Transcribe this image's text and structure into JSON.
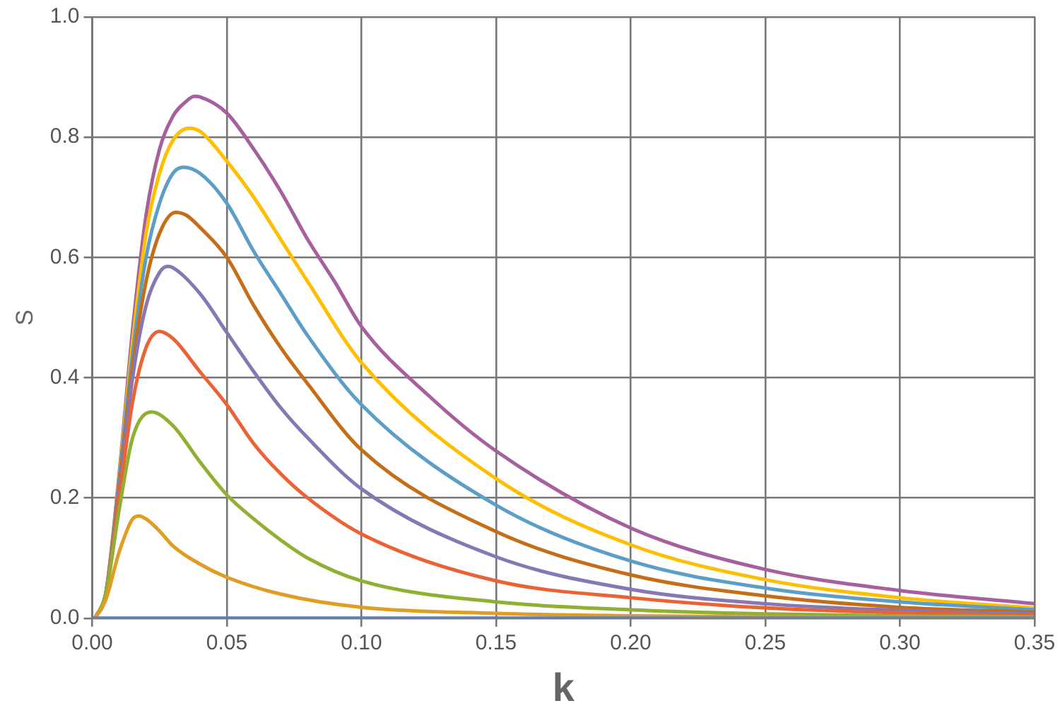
{
  "chart_data": {
    "type": "line",
    "xlabel": "k",
    "ylabel": "S",
    "xlim": [
      0,
      0.35
    ],
    "ylim": [
      0,
      1
    ],
    "xticks": [
      {
        "value": 0,
        "label": "0.00"
      },
      {
        "value": 0.05,
        "label": "0.05"
      },
      {
        "value": 0.1,
        "label": "0.10"
      },
      {
        "value": 0.15,
        "label": "0.15"
      },
      {
        "value": 0.2,
        "label": "0.20"
      },
      {
        "value": 0.25,
        "label": "0.25"
      },
      {
        "value": 0.3,
        "label": "0.30"
      },
      {
        "value": 0.35,
        "label": "0.35"
      }
    ],
    "yticks": [
      {
        "value": 0,
        "label": "0.0"
      },
      {
        "value": 0.2,
        "label": "0.2"
      },
      {
        "value": 0.4,
        "label": "0.4"
      },
      {
        "value": 0.6,
        "label": "0.6"
      },
      {
        "value": 0.8,
        "label": "0.8"
      },
      {
        "value": 1,
        "label": "1.0"
      }
    ],
    "grid": true,
    "line_style": "solid",
    "marker": "none",
    "series": [
      {
        "color": "#5e81b5",
        "x": [
          0,
          0.35
        ],
        "values": [
          0,
          0
        ]
      },
      {
        "color": "#e19c24",
        "x": [
          0.001,
          0.005,
          0.01,
          0.015,
          0.0175,
          0.02,
          0.025,
          0.03,
          0.04,
          0.05,
          0.07,
          0.1,
          0.15,
          0.2,
          0.25,
          0.3,
          0.35
        ],
        "values": [
          0,
          0.03,
          0.11,
          0.165,
          0.17,
          0.165,
          0.145,
          0.12,
          0.09,
          0.068,
          0.04,
          0.018,
          0.008,
          0.004,
          0.002,
          0.001,
          0.001
        ]
      },
      {
        "color": "#8fb032",
        "x": [
          0.001,
          0.005,
          0.01,
          0.015,
          0.022,
          0.03,
          0.04,
          0.05,
          0.06,
          0.07,
          0.08,
          0.1,
          0.15,
          0.2,
          0.25,
          0.3,
          0.35
        ],
        "values": [
          0,
          0.04,
          0.18,
          0.3,
          0.343,
          0.32,
          0.26,
          0.205,
          0.165,
          0.13,
          0.1,
          0.062,
          0.027,
          0.014,
          0.007,
          0.004,
          0.002
        ]
      },
      {
        "color": "#eb6235",
        "x": [
          0.001,
          0.005,
          0.01,
          0.015,
          0.02,
          0.025,
          0.03,
          0.04,
          0.05,
          0.06,
          0.07,
          0.08,
          0.1,
          0.15,
          0.2,
          0.25,
          0.3,
          0.35
        ],
        "values": [
          0,
          0.04,
          0.2,
          0.36,
          0.45,
          0.477,
          0.465,
          0.41,
          0.355,
          0.29,
          0.24,
          0.2,
          0.14,
          0.062,
          0.034,
          0.017,
          0.009,
          0.005
        ]
      },
      {
        "color": "#8778b3",
        "x": [
          0.001,
          0.005,
          0.01,
          0.015,
          0.02,
          0.025,
          0.028,
          0.03,
          0.04,
          0.05,
          0.06,
          0.07,
          0.08,
          0.1,
          0.15,
          0.2,
          0.25,
          0.3,
          0.35
        ],
        "values": [
          0,
          0.04,
          0.21,
          0.4,
          0.52,
          0.575,
          0.585,
          0.583,
          0.54,
          0.475,
          0.41,
          0.35,
          0.3,
          0.215,
          0.102,
          0.048,
          0.024,
          0.013,
          0.007
        ]
      },
      {
        "color": "#c56e1a",
        "x": [
          0.001,
          0.005,
          0.01,
          0.015,
          0.02,
          0.025,
          0.031,
          0.035,
          0.04,
          0.05,
          0.06,
          0.07,
          0.08,
          0.1,
          0.15,
          0.2,
          0.25,
          0.3,
          0.35
        ],
        "values": [
          0,
          0.04,
          0.22,
          0.42,
          0.56,
          0.64,
          0.675,
          0.67,
          0.65,
          0.6,
          0.52,
          0.45,
          0.39,
          0.28,
          0.144,
          0.072,
          0.037,
          0.018,
          0.01
        ]
      },
      {
        "color": "#5d9ec7",
        "x": [
          0.001,
          0.005,
          0.01,
          0.015,
          0.02,
          0.025,
          0.03,
          0.034,
          0.04,
          0.05,
          0.06,
          0.07,
          0.08,
          0.1,
          0.15,
          0.2,
          0.25,
          0.3,
          0.35
        ],
        "values": [
          0,
          0.04,
          0.23,
          0.44,
          0.6,
          0.69,
          0.74,
          0.75,
          0.74,
          0.69,
          0.61,
          0.54,
          0.47,
          0.355,
          0.188,
          0.095,
          0.05,
          0.027,
          0.014
        ]
      },
      {
        "color": "#ffbf00",
        "x": [
          0.001,
          0.005,
          0.01,
          0.015,
          0.02,
          0.025,
          0.03,
          0.036,
          0.04,
          0.05,
          0.06,
          0.07,
          0.08,
          0.1,
          0.15,
          0.2,
          0.25,
          0.3,
          0.35
        ],
        "values": [
          0,
          0.04,
          0.235,
          0.46,
          0.64,
          0.74,
          0.795,
          0.815,
          0.81,
          0.76,
          0.7,
          0.63,
          0.56,
          0.425,
          0.232,
          0.122,
          0.064,
          0.034,
          0.017
        ]
      },
      {
        "color": "#a5609d",
        "x": [
          0.001,
          0.005,
          0.01,
          0.015,
          0.02,
          0.025,
          0.03,
          0.035,
          0.038,
          0.04,
          0.05,
          0.06,
          0.07,
          0.08,
          0.09,
          0.1,
          0.125,
          0.15,
          0.2,
          0.25,
          0.3,
          0.35
        ],
        "values": [
          0,
          0.04,
          0.24,
          0.48,
          0.67,
          0.78,
          0.835,
          0.86,
          0.868,
          0.867,
          0.84,
          0.78,
          0.71,
          0.63,
          0.56,
          0.485,
          0.37,
          0.278,
          0.15,
          0.081,
          0.046,
          0.024
        ]
      }
    ]
  }
}
